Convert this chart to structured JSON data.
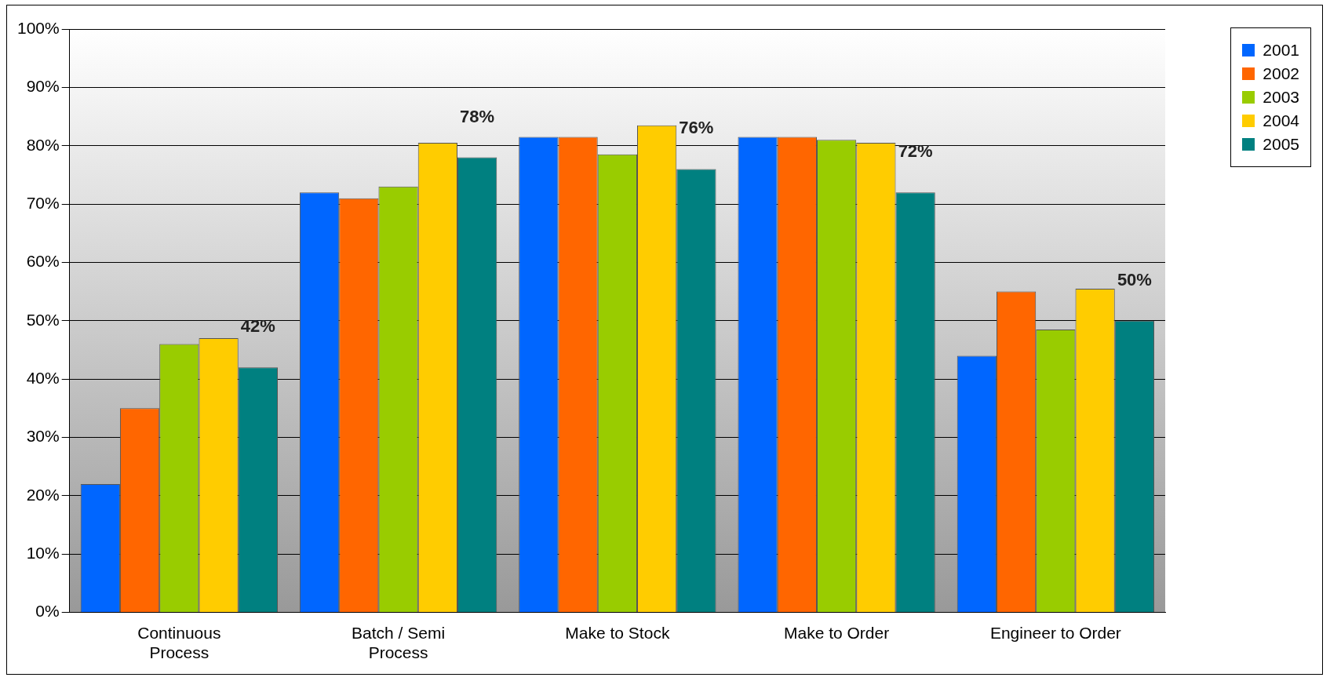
{
  "chart_data": {
    "type": "bar",
    "categories": [
      "Continuous Process",
      "Batch / Semi Process",
      "Make to Stock",
      "Make to Order",
      "Engineer to Order"
    ],
    "series": [
      {
        "name": "2001",
        "color": "#0066ff",
        "values": [
          22,
          72,
          81.5,
          81.5,
          44
        ]
      },
      {
        "name": "2002",
        "color": "#ff6600",
        "values": [
          35,
          71,
          81.5,
          81.5,
          55
        ]
      },
      {
        "name": "2003",
        "color": "#99cc00",
        "values": [
          46,
          73,
          78.5,
          81,
          48.5
        ]
      },
      {
        "name": "2004",
        "color": "#ffcc00",
        "values": [
          47,
          80.5,
          83.5,
          80.5,
          55.5
        ]
      },
      {
        "name": "2005",
        "color": "#008080",
        "values": [
          42,
          78,
          76,
          72,
          50
        ],
        "value_labels": [
          "42%",
          "78%",
          "76%",
          "72%",
          "50%"
        ]
      }
    ],
    "ylim": [
      0,
      100
    ],
    "yticks": [
      {
        "value": 0,
        "label": "0%"
      },
      {
        "value": 10,
        "label": "10%"
      },
      {
        "value": 20,
        "label": "20%"
      },
      {
        "value": 30,
        "label": "30%"
      },
      {
        "value": 40,
        "label": "40%"
      },
      {
        "value": 50,
        "label": "50%"
      },
      {
        "value": 60,
        "label": "60%"
      },
      {
        "value": 70,
        "label": "70%"
      },
      {
        "value": 80,
        "label": "80%"
      },
      {
        "value": 90,
        "label": "90%"
      },
      {
        "value": 100,
        "label": "100%"
      }
    ],
    "grid": "y",
    "legend": "top right"
  }
}
